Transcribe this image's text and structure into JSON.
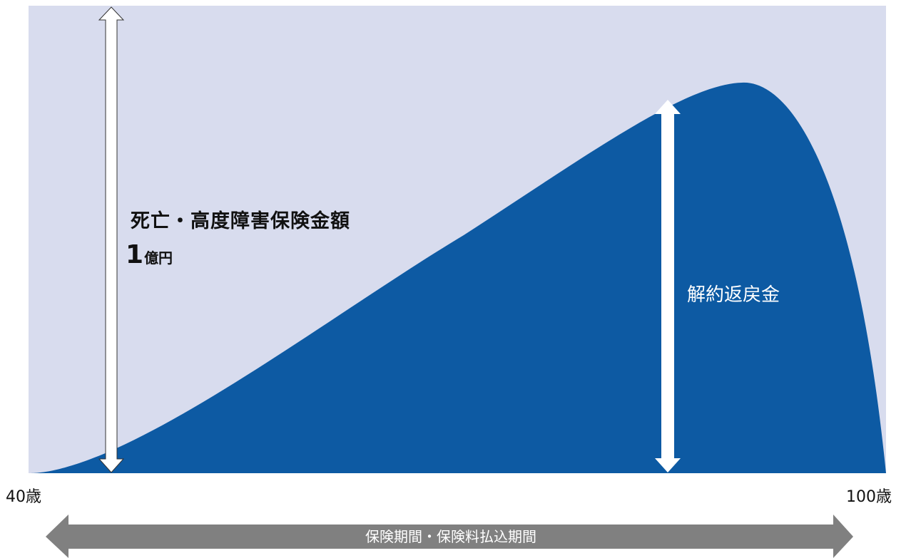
{
  "labels": {
    "death_benefit_title": "死亡・高度障害保険金額",
    "death_benefit_amount": "1",
    "death_benefit_unit": "億円",
    "surrender_value": "解約返戻金",
    "age_start": "40歳",
    "age_end": "100歳",
    "period": "保険期間・保険料払込期間"
  },
  "colors": {
    "background_area": "#d8dcee",
    "surrender_area": "#0d5aa3",
    "arrows": "#ffffff",
    "period_bar": "#808080",
    "text": "#111111"
  }
}
